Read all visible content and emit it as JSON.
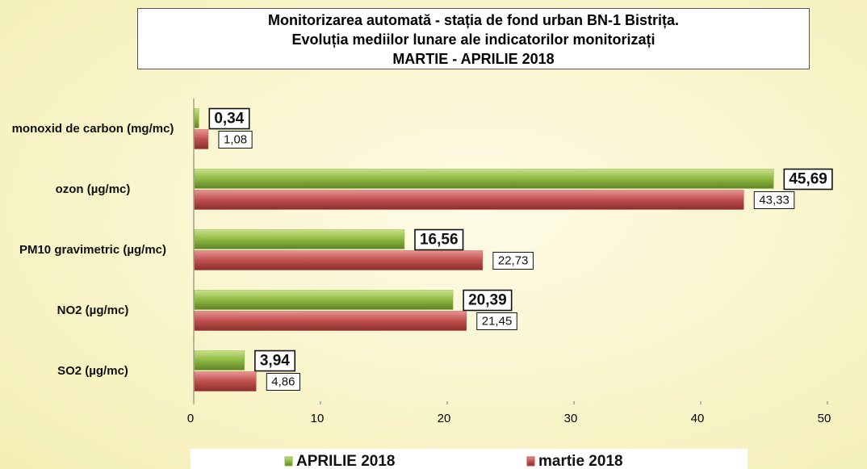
{
  "chart_data": {
    "type": "barh",
    "title": [
      "Monitorizarea automată  - stația de fond urban BN-1 Bistrița.",
      "Evoluția mediilor lunare ale indicatorilor monitorizați",
      "MARTIE - APRILIE  2018"
    ],
    "categories": [
      "monoxid de carbon (mg/mc)",
      "ozon (µg/mc)",
      "PM10 gravimetric (µg/mc)",
      "NO2 (µg/mc)",
      "SO2 (µg/mc)"
    ],
    "series": [
      {
        "name": "APRILIE 2018",
        "color": "#8fb842",
        "values": [
          0.34,
          45.69,
          16.56,
          20.39,
          3.94
        ],
        "value_labels": [
          "0,34",
          "45,69",
          "16,56",
          "20,39",
          "3,94"
        ]
      },
      {
        "name": "martie 2018",
        "color": "#c0504d",
        "values": [
          1.08,
          43.33,
          22.73,
          21.45,
          4.86
        ],
        "value_labels": [
          "1,08",
          "43,33",
          "22,73",
          "21,45",
          "4,86"
        ]
      }
    ],
    "xlim": [
      0,
      50
    ],
    "xticks": [
      0,
      10,
      20,
      30,
      40,
      50
    ]
  }
}
